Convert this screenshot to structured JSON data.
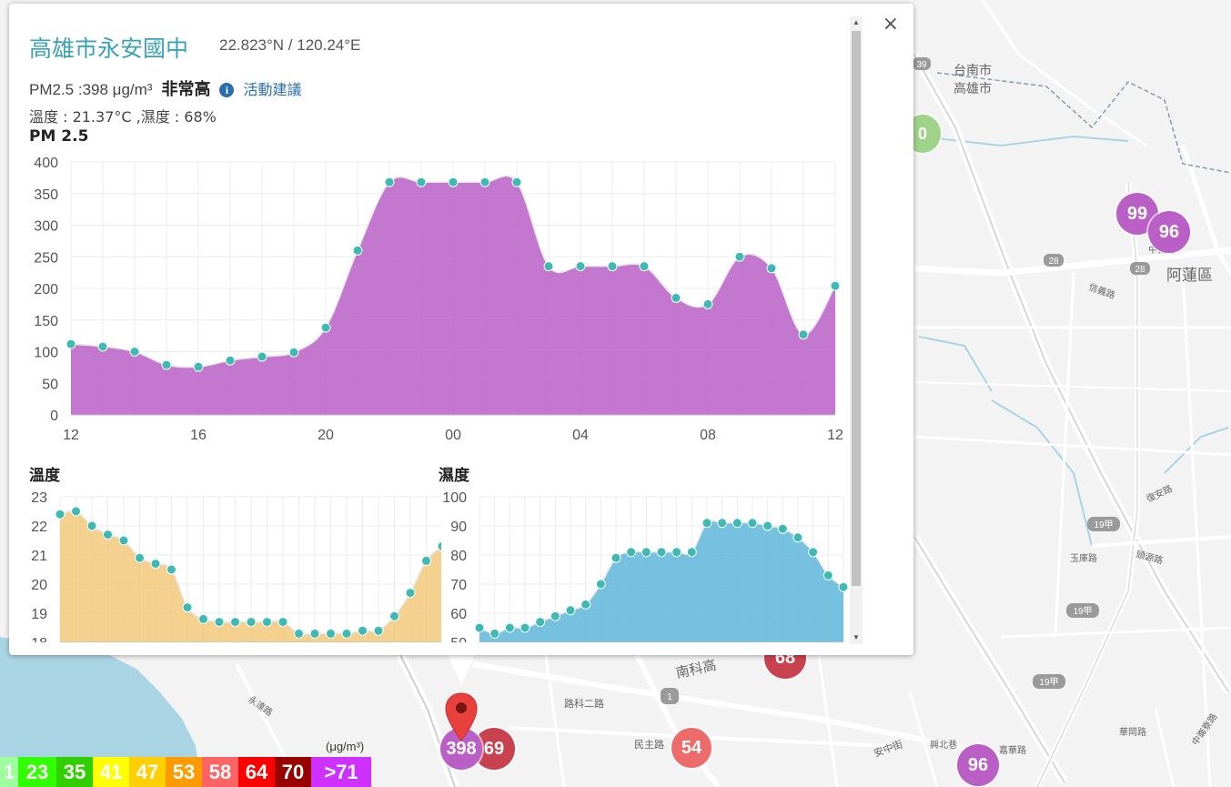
{
  "popup": {
    "title": "高雄市永安國中",
    "coords": "22.823°N / 120.24°E",
    "pm_reading": "PM2.5 :398 μg/m³",
    "level": "非常高",
    "advice_link": "活動建議",
    "temp_humidity": "溫度 : 21.37°C ,濕度 : 68%",
    "close_label": "×"
  },
  "charts": {
    "pm_title": "PM 2.5",
    "temp_title": "溫度",
    "hum_title": "濕度"
  },
  "chart_data": [
    {
      "type": "area",
      "title": "PM 2.5",
      "x": [
        "12",
        "13",
        "14",
        "15",
        "16",
        "17",
        "18",
        "19",
        "20",
        "21",
        "22",
        "23",
        "00",
        "01",
        "02",
        "03",
        "04",
        "05",
        "06",
        "07",
        "08",
        "09",
        "10",
        "11",
        "12"
      ],
      "x_ticks": [
        "12",
        "16",
        "20",
        "00",
        "04",
        "08",
        "12"
      ],
      "values": [
        112,
        108,
        100,
        79,
        76,
        86,
        92,
        99,
        138,
        260,
        368,
        368,
        368,
        368,
        368,
        235,
        235,
        235,
        235,
        185,
        175,
        250,
        232,
        127,
        204
      ],
      "ylim": [
        0,
        400
      ],
      "y_ticks": [
        0,
        50,
        100,
        150,
        200,
        250,
        300,
        350,
        400
      ],
      "color": "#b95fc6"
    },
    {
      "type": "area",
      "title": "溫度",
      "values": [
        22.4,
        22.5,
        22.0,
        21.7,
        21.5,
        20.9,
        20.7,
        20.5,
        19.2,
        18.8,
        18.7,
        18.7,
        18.7,
        18.7,
        18.7,
        18.3,
        18.3,
        18.3,
        18.3,
        18.4,
        18.4,
        18.9,
        19.7,
        20.8,
        21.3
      ],
      "ylim": [
        18,
        23
      ],
      "y_ticks": [
        18,
        19,
        20,
        21,
        22,
        23
      ],
      "color": "#f2c97a"
    },
    {
      "type": "area",
      "title": "濕度",
      "values": [
        55,
        53,
        55,
        55,
        57,
        59,
        61,
        63,
        70,
        79,
        81,
        81,
        81,
        81,
        81,
        91,
        91,
        91,
        91,
        90,
        89,
        86,
        81,
        73,
        69
      ],
      "ylim": [
        50,
        100
      ],
      "y_ticks": [
        50,
        60,
        70,
        80,
        90,
        100
      ],
      "color": "#5fb6db"
    }
  ],
  "legend": {
    "unit": "(μg/m³)",
    "cells": [
      {
        "label": "1",
        "color": "#9cff9c"
      },
      {
        "label": "23",
        "color": "#31ff00"
      },
      {
        "label": "35",
        "color": "#31cf00"
      },
      {
        "label": "41",
        "color": "#ffff00"
      },
      {
        "label": "47",
        "color": "#ffcf00"
      },
      {
        "label": "53",
        "color": "#ff9a00"
      },
      {
        "label": "58",
        "color": "#ff6464"
      },
      {
        "label": "64",
        "color": "#ff0000"
      },
      {
        "label": "70",
        "color": "#990000"
      },
      {
        "label": ">71",
        "color": "#ce30ff"
      }
    ]
  },
  "map": {
    "labels": [
      "台南市",
      "高雄市",
      "阿蓮區",
      "信義路",
      "中正路",
      "復安路",
      "玉庫路",
      "頭源路",
      "路科二路",
      "民主路",
      "永達路",
      "南科高",
      "安中街",
      "興北巷",
      "華岡路",
      "嘉華路",
      "中崙寮路",
      "19甲",
      "19甲",
      "19甲",
      "28",
      "28",
      "39",
      "1"
    ],
    "bubbles": [
      {
        "value": "99",
        "color": "#b95fc6"
      },
      {
        "value": "96",
        "color": "#b95fc6"
      },
      {
        "value": "0",
        "color": "#9fd38a"
      },
      {
        "value": "68",
        "color": "#c8424f"
      },
      {
        "value": "54",
        "color": "#ee6b6b"
      },
      {
        "value": "398",
        "color": "#b95fc6"
      },
      {
        "value": "69",
        "color": "#c8424f"
      },
      {
        "value": "96",
        "color": "#b95fc6"
      }
    ]
  }
}
